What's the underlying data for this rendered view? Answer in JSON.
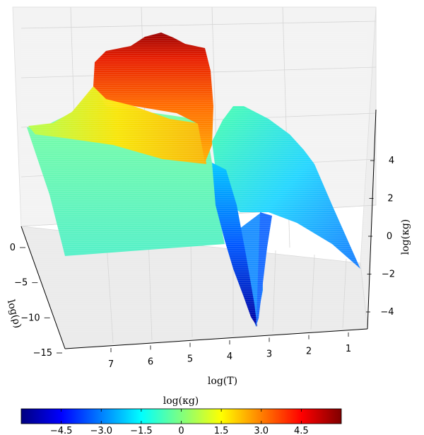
{
  "chart_data": {
    "type": "surface3d",
    "title": "",
    "x_axis": {
      "label": "log(T)",
      "ticks": [
        7,
        6,
        5,
        4,
        3,
        2,
        1
      ]
    },
    "y_axis": {
      "label": "log(ρ)",
      "ticks": [
        0,
        -5,
        -10,
        -15
      ]
    },
    "z_axis": {
      "label": "log(κg)",
      "ticks": [
        4,
        2,
        0,
        -2,
        -4
      ]
    },
    "colorbar": {
      "label": "log(κg)",
      "range": [
        -6,
        6
      ],
      "tick_values": [
        -4.5,
        -3.0,
        -1.5,
        0,
        1.5,
        3.0,
        4.5
      ],
      "tick_labels": [
        "−4.5",
        "−3.0",
        "−1.5",
        "0",
        "1.5",
        "3.0",
        "4.5"
      ],
      "colormap": "jet",
      "colors": [
        "#00007f",
        "#0000ff",
        "#007fff",
        "#00ffff",
        "#7fff7f",
        "#ffff00",
        "#ff7f00",
        "#ff0000",
        "#7f0000"
      ]
    },
    "colormap": "jet",
    "surface_features": {
      "peak_value": 5.8,
      "minimum_value": -5,
      "plateau_value": 0
    }
  }
}
